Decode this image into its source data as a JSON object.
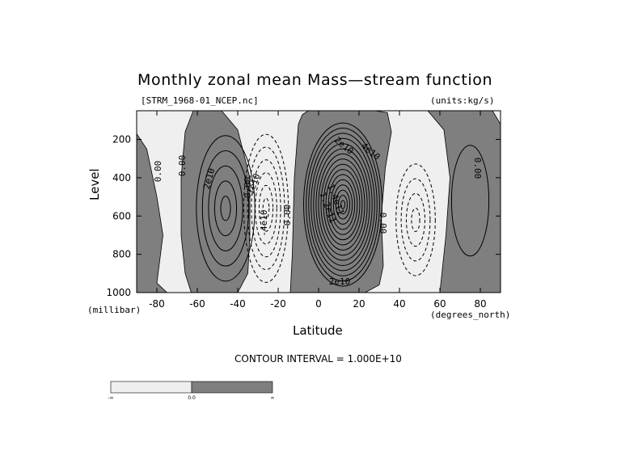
{
  "title": "Monthly zonal mean Mass—stream function",
  "file_label": "[STRM_1968-01_NCEP.nc]",
  "units_label": "(units:kg/s)",
  "contour_interval_text": "CONTOUR INTERVAL = 1.000E+10",
  "colorbar": {
    "labels": [
      "-∞",
      "0.0",
      "∞"
    ],
    "colors": [
      "#efefef",
      "#7f7f7f"
    ]
  },
  "colors": {
    "negative_fill": "#efefef",
    "positive_fill": "#7f7f7f",
    "line": "#000000"
  },
  "chart_data": {
    "type": "contour",
    "title": "Monthly zonal mean Mass—stream function",
    "xlabel": "Latitude",
    "ylabel": "Level",
    "x_units": "(degrees_north)",
    "y_units": "(millibar)",
    "xlim": [
      -90,
      90
    ],
    "ylim": [
      1000,
      50
    ],
    "y_reversed": true,
    "xticks": [
      -80,
      -60,
      -40,
      -20,
      0,
      20,
      40,
      60,
      80
    ],
    "yticks": [
      200,
      400,
      600,
      800,
      1000
    ],
    "contour_interval": 10000000000.0,
    "contour_labels": [
      "0.00",
      "0.00",
      "2e10",
      "0.00",
      "-1e10",
      "-4e10",
      "0.00",
      "2e10",
      "4e10",
      "1.4e11",
      "1.2e11",
      "0.00",
      "0.00",
      "2e10"
    ],
    "cells": [
      {
        "sign": "positive",
        "lat_center": -46,
        "p_center": 560,
        "lat_halfwidth": 16,
        "p_halfwidth": 420,
        "peak": 50000000000.0
      },
      {
        "sign": "negative",
        "lat_center": -26,
        "p_center": 560,
        "lat_halfwidth": 12,
        "p_halfwidth": 420,
        "peak": -60000000000.0
      },
      {
        "sign": "positive",
        "lat_center": 12,
        "p_center": 540,
        "lat_halfwidth": 20,
        "p_halfwidth": 440,
        "peak": 160000000000.0
      },
      {
        "sign": "negative",
        "lat_center": 48,
        "p_center": 620,
        "lat_halfwidth": 11,
        "p_halfwidth": 330,
        "peak": -40000000000.0
      },
      {
        "sign": "positive",
        "lat_center": 75,
        "p_center": 520,
        "lat_halfwidth": 15,
        "p_halfwidth": 470,
        "peak": 10000000000.0
      }
    ]
  }
}
